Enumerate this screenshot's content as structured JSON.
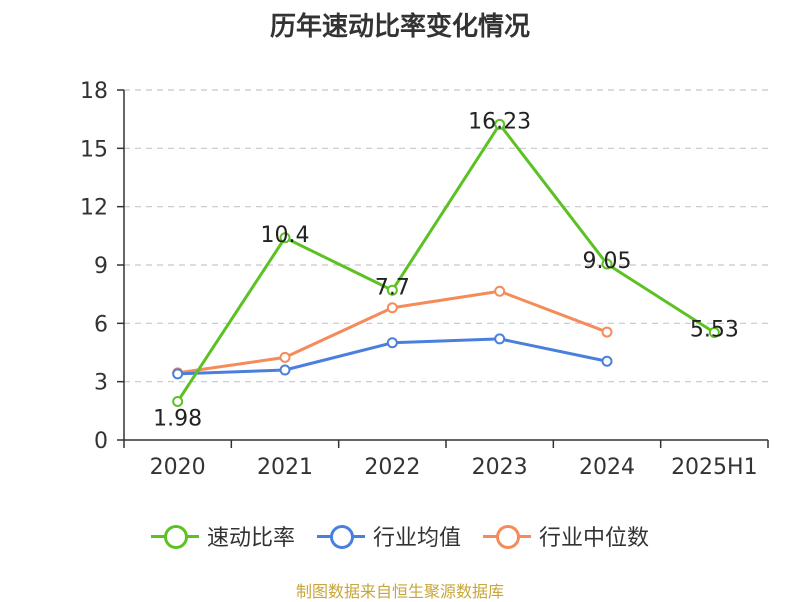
{
  "title": "历年速动比率变化情况",
  "source_note": "制图数据来自恒生聚源数据库",
  "chart_data": {
    "type": "line",
    "title": "历年速动比率变化情况",
    "categories": [
      "2020",
      "2021",
      "2022",
      "2023",
      "2024",
      "2025H1"
    ],
    "ylim": [
      0,
      18
    ],
    "yticks": [
      0,
      3,
      6,
      9,
      12,
      15,
      18
    ],
    "grid": true,
    "legend_position": "bottom",
    "series": [
      {
        "name": "速动比率",
        "color": "#5cc223",
        "values": [
          1.98,
          10.4,
          7.7,
          16.23,
          9.05,
          5.53
        ],
        "labels": [
          "1.98",
          "10.4",
          "7.7",
          "16.23",
          "9.05",
          "5.53"
        ]
      },
      {
        "name": "行业均值",
        "color": "#4a7fde",
        "values": [
          3.4,
          3.6,
          5.0,
          5.2,
          4.05,
          null
        ]
      },
      {
        "name": "行业中位数",
        "color": "#f58b5a",
        "values": [
          3.45,
          4.25,
          6.8,
          7.65,
          5.55,
          null
        ]
      }
    ]
  }
}
